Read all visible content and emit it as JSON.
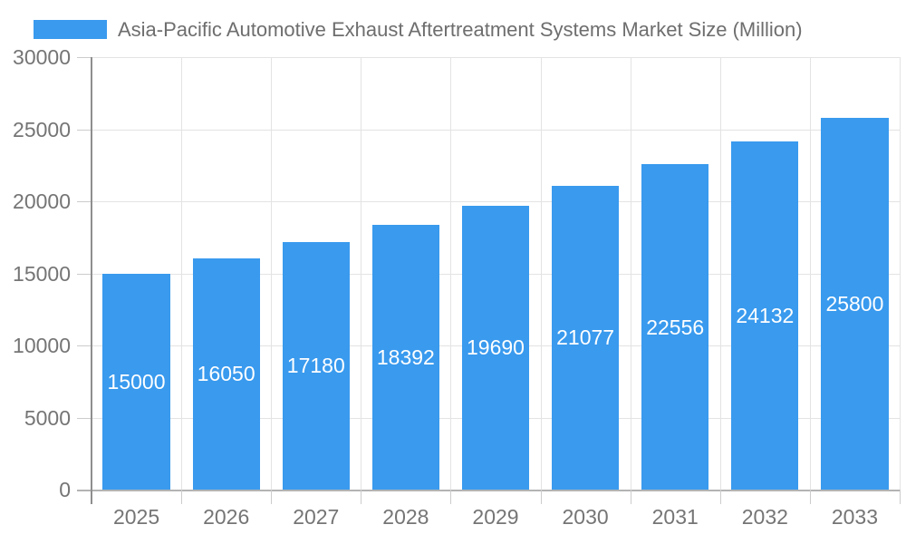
{
  "chart_data": {
    "type": "bar",
    "title": "Asia-Pacific Automotive Exhaust Aftertreatment Systems Market Size (Million)",
    "legend": [
      "Asia-Pacific Automotive Exhaust Aftertreatment Systems Market Size (Million)"
    ],
    "legend_position": "top-left",
    "categories": [
      "2025",
      "2026",
      "2027",
      "2028",
      "2029",
      "2030",
      "2031",
      "2032",
      "2033"
    ],
    "values": [
      15000,
      16050,
      17180,
      18392,
      19690,
      21077,
      22556,
      24132,
      25800
    ],
    "xlabel": "",
    "ylabel": "",
    "ylim": [
      0,
      30000
    ],
    "yticks": [
      0,
      5000,
      10000,
      15000,
      20000,
      25000,
      30000
    ],
    "grid": true,
    "bar_value_labels": "inside-center-white"
  },
  "colors": {
    "bar": "#399aee",
    "bar_label": "#ffffff",
    "axis_label": "#757575",
    "title": "#6e6e6e",
    "grid_line": "#e3e3e3",
    "zero_line": "#b3b3b3",
    "tick_line": "#cccccc",
    "axis_line": "#8e8e8e",
    "background": "#ffffff"
  }
}
